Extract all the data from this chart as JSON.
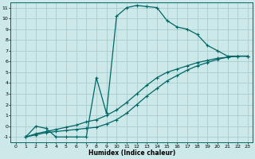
{
  "xlabel": "Humidex (Indice chaleur)",
  "bg_color": "#cde8e8",
  "grid_color": "#aacccc",
  "line_color": "#006666",
  "xlim": [
    -0.5,
    23.5
  ],
  "ylim": [
    -1.5,
    11.5
  ],
  "xticks": [
    0,
    1,
    2,
    3,
    4,
    5,
    6,
    7,
    8,
    9,
    10,
    11,
    12,
    13,
    14,
    15,
    16,
    17,
    18,
    19,
    20,
    21,
    22,
    23
  ],
  "yticks": [
    -1,
    0,
    1,
    2,
    3,
    4,
    5,
    6,
    7,
    8,
    9,
    10,
    11
  ],
  "curve1_x": [
    1,
    2,
    3,
    4,
    5,
    6,
    7,
    8,
    9,
    10,
    11,
    12,
    13,
    14,
    15,
    16,
    17,
    18,
    19,
    20,
    21,
    22,
    23
  ],
  "curve1_y": [
    -1.0,
    0.0,
    -0.2,
    -1.0,
    -1.0,
    -1.0,
    -1.0,
    4.5,
    1.2,
    10.2,
    11.0,
    11.2,
    11.1,
    11.0,
    9.8,
    9.2,
    9.0,
    8.5,
    7.5,
    7.0,
    6.5,
    6.5,
    6.5
  ],
  "curve2_x": [
    1,
    2,
    3,
    4,
    5,
    6,
    7,
    8,
    9,
    10,
    11,
    12,
    13,
    14,
    15,
    16,
    17,
    18,
    19,
    20,
    21,
    22,
    23
  ],
  "curve2_y": [
    -1.0,
    -0.7,
    -0.5,
    -0.3,
    -0.1,
    0.1,
    0.4,
    0.6,
    1.0,
    1.5,
    2.2,
    3.0,
    3.8,
    4.5,
    5.0,
    5.3,
    5.6,
    5.9,
    6.1,
    6.3,
    6.4,
    6.5,
    6.5
  ],
  "curve3_x": [
    1,
    2,
    3,
    4,
    5,
    6,
    7,
    8,
    9,
    10,
    11,
    12,
    13,
    14,
    15,
    16,
    17,
    18,
    19,
    20,
    21,
    22,
    23
  ],
  "curve3_y": [
    -1.0,
    -0.8,
    -0.6,
    -0.5,
    -0.4,
    -0.3,
    -0.2,
    -0.1,
    0.2,
    0.6,
    1.2,
    2.0,
    2.8,
    3.5,
    4.2,
    4.7,
    5.2,
    5.6,
    5.9,
    6.2,
    6.4,
    6.5,
    6.5
  ]
}
